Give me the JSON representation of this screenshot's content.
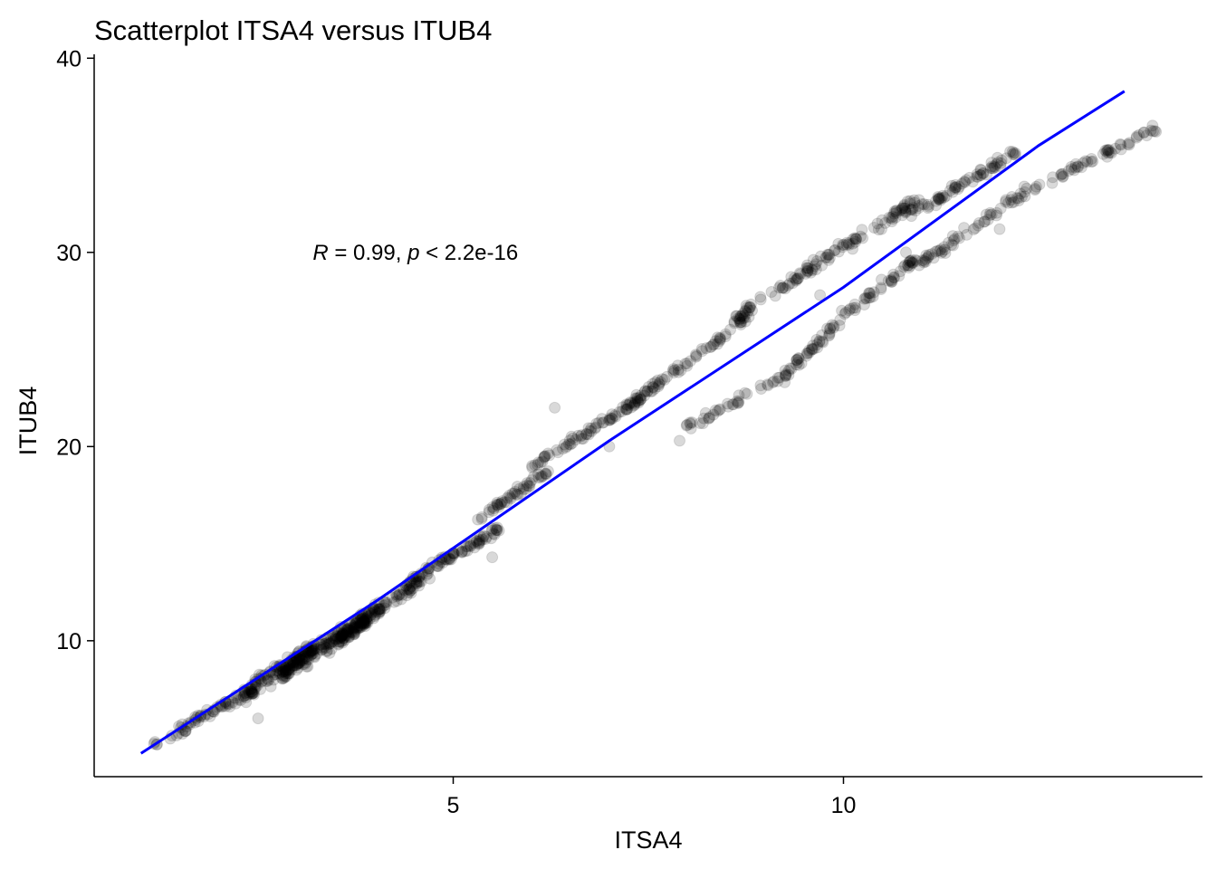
{
  "chart_data": {
    "type": "scatter",
    "title": "Scatterplot ITSA4 versus ITUB4",
    "xlabel": "ITSA4",
    "ylabel": "ITUB4",
    "xlim": [
      0.4,
      14.6
    ],
    "ylim": [
      3.0,
      40.2
    ],
    "x_ticks": [
      5,
      10
    ],
    "y_ticks": [
      10,
      20,
      30,
      40
    ],
    "x_tick_labels": [
      "5",
      "10"
    ],
    "y_tick_labels": [
      "10",
      "20",
      "30",
      "40"
    ],
    "grid": false,
    "legend": "none",
    "point_color": "#000000",
    "point_alpha": 0.15,
    "fit_line": {
      "color": "#0000ff",
      "points": [
        [
          1.0,
          4.2
        ],
        [
          4.0,
          12.0
        ],
        [
          7.0,
          20.3
        ],
        [
          10.0,
          28.2
        ],
        [
          12.5,
          35.5
        ],
        [
          13.6,
          38.3
        ]
      ]
    },
    "annotation": {
      "r_symbol": "R",
      "r_text": " = 0.99, ",
      "p_symbol": "p",
      "p_text": " < 2.2e-16",
      "x": 3.2,
      "y": 30
    },
    "series": [
      {
        "segments": [
          {
            "x0": 1.0,
            "y0": 4.4,
            "x1": 1.6,
            "y1": 5.4,
            "n": 12,
            "spread": 0.15
          },
          {
            "x0": 1.5,
            "y0": 5.5,
            "x1": 2.5,
            "y1": 7.6,
            "n": 60,
            "spread": 0.35
          },
          {
            "x0": 2.3,
            "y0": 7.2,
            "x1": 3.2,
            "y1": 9.6,
            "n": 110,
            "spread": 0.55
          },
          {
            "x0": 2.8,
            "y0": 8.3,
            "x1": 3.9,
            "y1": 11.2,
            "n": 180,
            "spread": 0.6
          },
          {
            "x0": 3.5,
            "y0": 10.0,
            "x1": 4.6,
            "y1": 13.2,
            "n": 120,
            "spread": 0.45
          },
          {
            "x0": 4.4,
            "y0": 13.0,
            "x1": 5.6,
            "y1": 15.8,
            "n": 80,
            "spread": 0.35
          },
          {
            "x0": 5.3,
            "y0": 16.2,
            "x1": 6.2,
            "y1": 18.7,
            "n": 50,
            "spread": 0.3
          },
          {
            "x0": 6.0,
            "y0": 19.0,
            "x1": 7.4,
            "y1": 22.4,
            "n": 70,
            "spread": 0.3
          },
          {
            "x0": 7.2,
            "y0": 22.0,
            "x1": 8.8,
            "y1": 26.8,
            "n": 80,
            "spread": 0.35
          },
          {
            "x0": 8.6,
            "y0": 26.6,
            "x1": 9.6,
            "y1": 29.2,
            "n": 45,
            "spread": 0.3
          },
          {
            "x0": 9.5,
            "y0": 29.0,
            "x1": 11.0,
            "y1": 32.8,
            "n": 80,
            "spread": 0.45
          },
          {
            "x0": 10.9,
            "y0": 32.0,
            "x1": 12.2,
            "y1": 35.2,
            "n": 70,
            "spread": 0.4
          },
          {
            "x0": 8.0,
            "y0": 21.0,
            "x1": 9.3,
            "y1": 23.8,
            "n": 40,
            "spread": 0.35
          },
          {
            "x0": 9.2,
            "y0": 23.5,
            "x1": 10.0,
            "y1": 26.6,
            "n": 45,
            "spread": 0.35
          },
          {
            "x0": 10.0,
            "y0": 26.8,
            "x1": 11.0,
            "y1": 29.8,
            "n": 50,
            "spread": 0.4
          },
          {
            "x0": 11.0,
            "y0": 29.5,
            "x1": 12.4,
            "y1": 33.4,
            "n": 60,
            "spread": 0.45
          },
          {
            "x0": 12.4,
            "y0": 33.2,
            "x1": 14.0,
            "y1": 36.4,
            "n": 55,
            "spread": 0.35
          }
        ],
        "outliers": [
          [
            7.0,
            20.0
          ],
          [
            7.9,
            20.3
          ],
          [
            8.2,
            21.2
          ],
          [
            5.5,
            14.3
          ],
          [
            2.5,
            6.0
          ],
          [
            4.7,
            13.2
          ],
          [
            10.8,
            30.0
          ],
          [
            9.7,
            27.8
          ],
          [
            6.3,
            22.0
          ],
          [
            12.0,
            31.2
          ]
        ]
      }
    ]
  }
}
